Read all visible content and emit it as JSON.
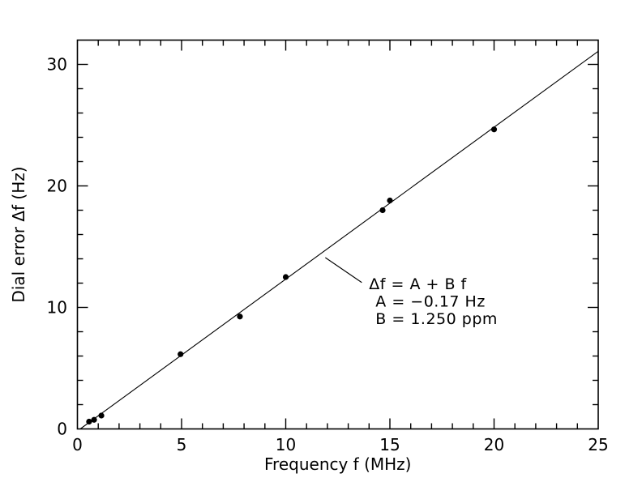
{
  "figure": {
    "background_color": "#ffffff",
    "ink_color": "#000000"
  },
  "chart_data": {
    "type": "scatter",
    "title": "",
    "xlabel": "Frequency f (MHz)",
    "ylabel": "Dial error Δf (Hz)",
    "xlim": [
      0,
      25
    ],
    "ylim": [
      0,
      32
    ],
    "x_major_ticks": [
      0,
      5,
      10,
      15,
      20,
      25
    ],
    "x_minor_step": 1,
    "y_major_ticks": [
      0,
      10,
      20,
      30
    ],
    "y_minor_step": 2,
    "grid": false,
    "legend": false,
    "marker": "filled-circle",
    "points": [
      {
        "x": 0.56,
        "y": 0.6
      },
      {
        "x": 0.8,
        "y": 0.75
      },
      {
        "x": 1.15,
        "y": 1.1
      },
      {
        "x": 4.95,
        "y": 6.15
      },
      {
        "x": 7.8,
        "y": 9.25
      },
      {
        "x": 10.0,
        "y": 12.5
      },
      {
        "x": 14.65,
        "y": 18.0
      },
      {
        "x": 15.0,
        "y": 18.8
      },
      {
        "x": 20.0,
        "y": 24.65
      }
    ],
    "fit_line": {
      "intercept_hz": -0.17,
      "slope_hz_per_mhz": 1.25,
      "x_end": 25
    },
    "annotation": {
      "lines": [
        "Δf = A + B f",
        "A = −0.17 Hz",
        "B = 1.250 ppm"
      ],
      "anchor": {
        "f_mhz": 14.0,
        "df_hz": 11.5
      },
      "leader": {
        "x1": 11.9,
        "y1": 14.1,
        "x2": 13.65,
        "y2": 12.05
      }
    }
  }
}
